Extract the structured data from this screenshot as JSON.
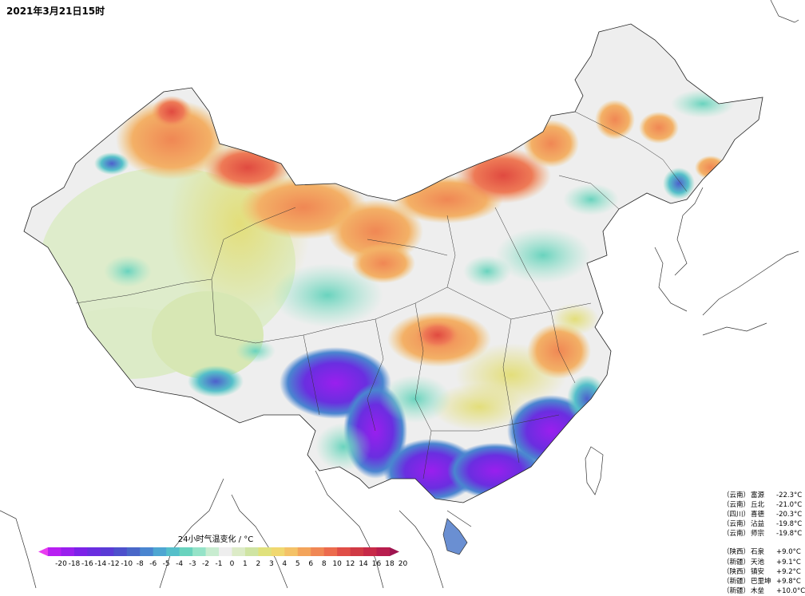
{
  "header": {
    "timestamp": "2021年3月21日15时"
  },
  "legend": {
    "title": "24小时气温变化 / °C",
    "ticks": [
      "-20",
      "-18",
      "-16",
      "-14",
      "-12",
      "-10",
      "-8",
      "-6",
      "-5",
      "-4",
      "-3",
      "-2",
      "-1",
      "0",
      "1",
      "2",
      "3",
      "4",
      "5",
      "6",
      "8",
      "10",
      "12",
      "14",
      "16",
      "18",
      "20"
    ],
    "colors": [
      "#e83cf0",
      "#b81ff2",
      "#9a1fee",
      "#7d22e8",
      "#6a2ee0",
      "#5a3bd6",
      "#4d50cc",
      "#4967c8",
      "#4a85d0",
      "#4ea6d2",
      "#55bfca",
      "#69d3be",
      "#95e3c8",
      "#c8ecd0",
      "#eeeeee",
      "#dcebc7",
      "#cfe4a3",
      "#e0e17c",
      "#f0d870",
      "#f4c267",
      "#f3a45b",
      "#f08754",
      "#ec6b4d",
      "#e04e47",
      "#d03a45",
      "#c72a48",
      "#b81e4e",
      "#9f1550"
    ]
  },
  "stations_cold": [
    {
      "province": "（云南）",
      "name": "富源",
      "value": "-22.3°C"
    },
    {
      "province": "（云南）",
      "name": "丘北",
      "value": "-21.0°C"
    },
    {
      "province": "（四川）",
      "name": "喜德",
      "value": "-20.3°C"
    },
    {
      "province": "（云南）",
      "name": "沾益",
      "value": "-19.8°C"
    },
    {
      "province": "（云南）",
      "name": "师宗",
      "value": "-19.8°C"
    }
  ],
  "stations_warm": [
    {
      "province": "（陕西）",
      "name": "石泉",
      "value": "+9.0°C"
    },
    {
      "province": "（新疆）",
      "name": "天池",
      "value": "+9.1°C"
    },
    {
      "province": "（陕西）",
      "name": "镇安",
      "value": "+9.2°C"
    },
    {
      "province": "（新疆）",
      "name": "巴里坤",
      "value": "+9.8°C"
    },
    {
      "province": "（新疆）",
      "name": "木垒",
      "value": "+10.0°C"
    }
  ]
}
